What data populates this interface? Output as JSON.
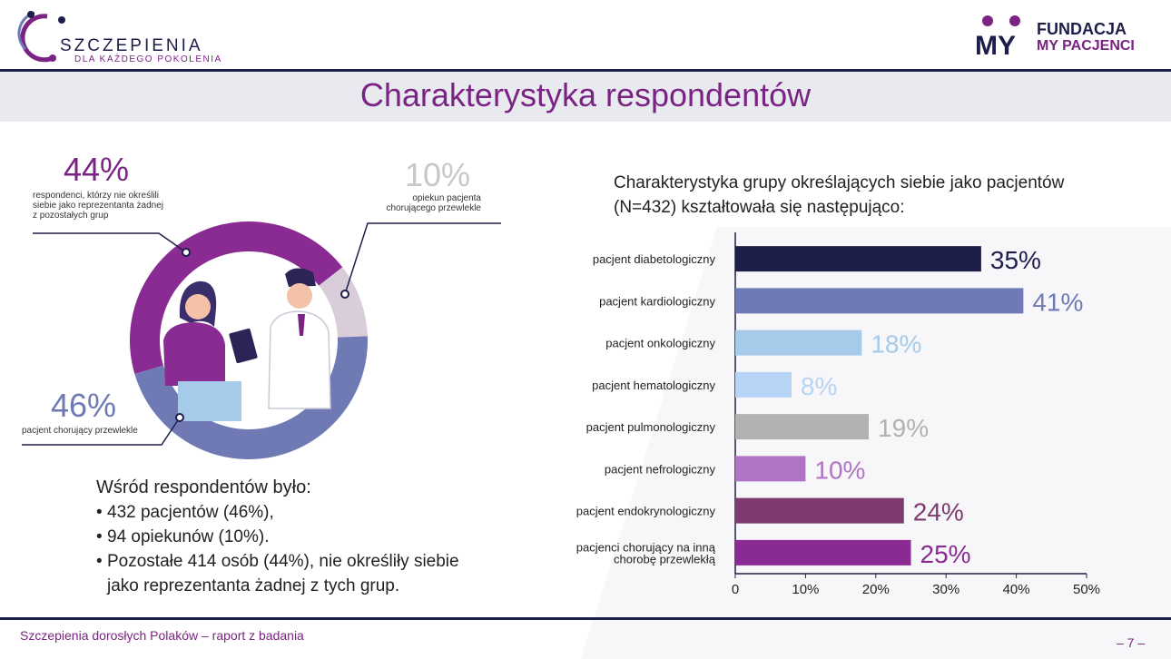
{
  "header": {
    "logo_left_main": "SZCZEPIENIA",
    "logo_left_sub": "DLA KAŻDEGO POKOLENIA",
    "logo_right_line1": "FUNDACJA",
    "logo_right_line2": "MY PACJENCI",
    "logo_right_mark": "MY"
  },
  "title": "Charakterystyka respondentów",
  "donut": {
    "segments": [
      {
        "pct_label": "44%",
        "value": 44,
        "color": "#8a2a93",
        "desc": [
          "respondenci, którzy nie określili",
          "siebie jako reprezentanta żadnej",
          "z pozostałych grup"
        ]
      },
      {
        "pct_label": "10%",
        "value": 10,
        "color": "#d8cdd8",
        "desc": [
          "opiekun pacjenta",
          "chorującego przewlekle"
        ]
      },
      {
        "pct_label": "46%",
        "value": 46,
        "color": "#6f7ab5",
        "desc": [
          "pacjent chorujący przewlekle"
        ]
      }
    ]
  },
  "respondents": {
    "heading": "Wśród respondentów było:",
    "items": [
      "432 pacjentów (46%),",
      "94 opiekunów (10%).",
      "Pozostałe 414 osób (44%), nie określiły siebie",
      "jako reprezentanta żadnej z tych grup."
    ]
  },
  "chart_heading": [
    "Charakterystyka grupy określających siebie jako pacjentów",
    "(N=432) kształtowała się następująco:"
  ],
  "chart_data": {
    "type": "bar",
    "orientation": "horizontal",
    "categories": [
      "pacjent diabetologiczny",
      "pacjent kardiologiczny",
      "pacjent onkologiczny",
      "pacjent hematologiczny",
      "pacjent pulmonologiczny",
      "pacjent nefrologiczny",
      "pacjent endokrynologiczny",
      "pacjenci chorujący na inną chorobę przewlekłą"
    ],
    "category_lines": [
      [
        "pacjent diabetologiczny"
      ],
      [
        "pacjent kardiologiczny"
      ],
      [
        "pacjent onkologiczny"
      ],
      [
        "pacjent hematologiczny"
      ],
      [
        "pacjent pulmonologiczny"
      ],
      [
        "pacjent nefrologiczny"
      ],
      [
        "pacjent endokrynologiczny"
      ],
      [
        "pacjenci chorujący na inną",
        "chorobę przewlekłą"
      ]
    ],
    "values": [
      35,
      41,
      18,
      8,
      19,
      10,
      24,
      25
    ],
    "value_labels": [
      "35%",
      "41%",
      "18%",
      "8%",
      "19%",
      "10%",
      "24%",
      "25%"
    ],
    "colors": [
      "#1e1e4a",
      "#6f7ab5",
      "#a6cbea",
      "#b6d4f5",
      "#b2b2b2",
      "#b074c5",
      "#7e3b6f",
      "#8a2a93"
    ],
    "xlim": [
      0,
      50
    ],
    "xticks": [
      0,
      10,
      20,
      30,
      40,
      50
    ],
    "xtick_labels": [
      "0",
      "10%",
      "20%",
      "30%",
      "40%",
      "50%"
    ],
    "grid": false
  },
  "footer": {
    "left": "Szczepienia dorosłych Polaków – raport z badania",
    "right": "– 7 –"
  }
}
